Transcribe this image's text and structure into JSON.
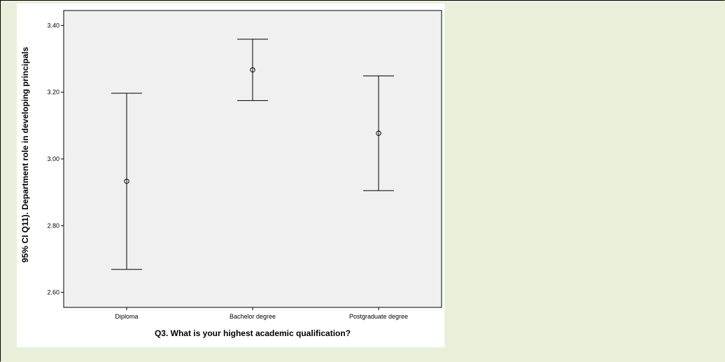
{
  "colors": {
    "page_background": "#e8f0dc",
    "chart_panel": "#ffffff",
    "plot_area": "#f0f0f0",
    "ink": "#000000"
  },
  "chart_data": {
    "type": "errorbar",
    "xlabel": "Q3. What is your highest academic qualification?",
    "ylabel": "95% CI Q11). Department role in developing principals",
    "categories": [
      "Diploma",
      "Bachelor degree",
      "Postgraduate degree"
    ],
    "ylim": [
      2.555,
      3.445
    ],
    "yticks": [
      2.6,
      2.8,
      3.0,
      3.2,
      3.4
    ],
    "ytick_labels": [
      "2.60",
      "2.80",
      "3.00",
      "3.20",
      "3.40"
    ],
    "series": [
      {
        "mean": [
          2.933,
          3.267,
          3.077
        ],
        "lower": [
          2.669,
          3.175,
          2.905
        ],
        "upper": [
          3.197,
          3.359,
          3.249
        ]
      }
    ],
    "grid": false,
    "legend": "none"
  }
}
